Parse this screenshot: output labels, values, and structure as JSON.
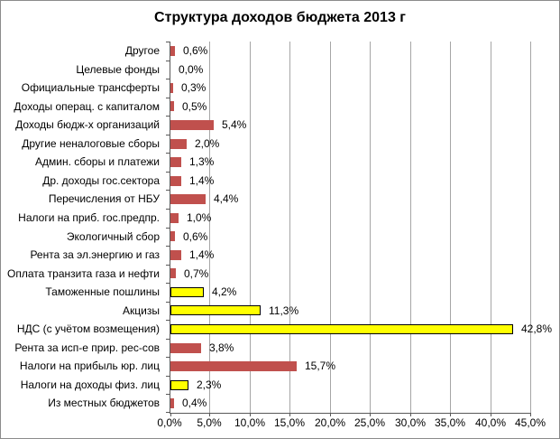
{
  "title": "Структура доходов бюджета 2013 г",
  "chart_data": {
    "type": "bar",
    "orientation": "horizontal",
    "title": "Структура доходов бюджета 2013 г",
    "xlabel": "",
    "ylabel": "",
    "xlim": [
      0,
      45
    ],
    "grid": true,
    "legend": "none",
    "categories": [
      "Другое",
      "Целевые фонды",
      "Официальные трансферты",
      "Доходы операц. с капиталом",
      "Доходы бюдж-х организаций",
      "Другие неналоговые сборы",
      "Админ. сборы и платежи",
      "Др. доходы гос.сектора",
      "Перечисления от НБУ",
      "Налоги на приб. гос.предпр.",
      "Экологичный сбор",
      "Рента за эл.энергию и газ",
      "Оплата транзита газа и нефти",
      "Таможенные пошлины",
      "Акцизы",
      "НДС (с учётом возмещения)",
      "Рента за исп-е прир. рес-сов",
      "Налоги на прибыль юр. лиц",
      "Налоги на доходы физ. лиц",
      "Из местных бюджетов"
    ],
    "values": [
      0.6,
      0.0,
      0.3,
      0.5,
      5.4,
      2.0,
      1.3,
      1.4,
      4.4,
      1.0,
      0.6,
      1.4,
      0.7,
      4.2,
      11.3,
      42.8,
      3.8,
      15.7,
      2.3,
      0.4
    ],
    "value_labels": [
      "0,6%",
      "0,0%",
      "0,3%",
      "0,5%",
      "5,4%",
      "2,0%",
      "1,3%",
      "1,4%",
      "4,4%",
      "1,0%",
      "0,6%",
      "1,4%",
      "0,7%",
      "4,2%",
      "11,3%",
      "42,8%",
      "3,8%",
      "15,7%",
      "2,3%",
      "0,4%"
    ],
    "bar_colors": [
      "red",
      "red",
      "red",
      "red",
      "red",
      "red",
      "red",
      "red",
      "red",
      "red",
      "red",
      "red",
      "red",
      "yellow",
      "yellow",
      "yellow",
      "red",
      "red",
      "yellow",
      "red"
    ],
    "x_ticks": [
      0,
      5,
      10,
      15,
      20,
      25,
      30,
      35,
      40,
      45
    ],
    "x_tick_labels": [
      "0,0%",
      "5,0%",
      "10,0%",
      "15,0%",
      "20,0%",
      "25,0%",
      "30,0%",
      "35,0%",
      "40,0%",
      "45,0%"
    ],
    "colors": {
      "red": "#C0504D",
      "yellow": "#FFFF00",
      "yellow_border": "#000000",
      "gridline": "#a6a6a6",
      "axis": "#595959",
      "text": "#000000",
      "background": "#ffffff"
    }
  }
}
